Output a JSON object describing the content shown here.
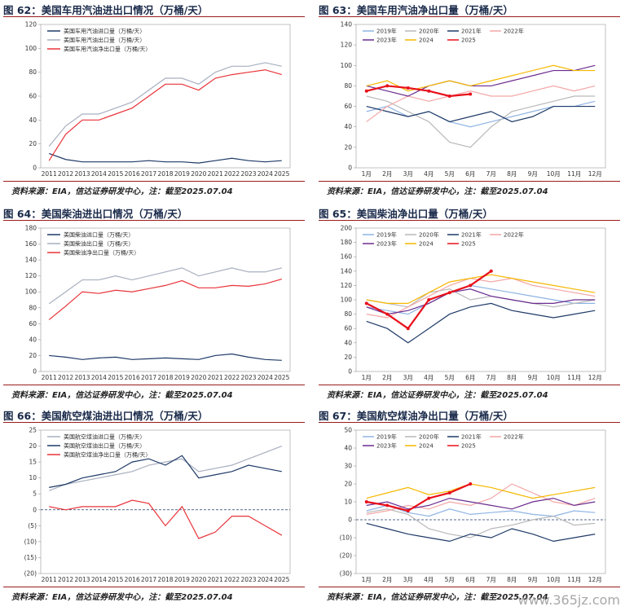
{
  "source_text": "资料来源：EIA，信达证券研发中心，注：截至2025.07.04",
  "watermark": "www.365jz.com",
  "colors": {
    "navy": "#1f3a68",
    "grey": "#a7afbf",
    "red": "#e8343a",
    "lightblue": "#8fb4e3",
    "darkblue": "#1f3a68",
    "pink": "#f4a6a6",
    "purple": "#6a2c8f",
    "gold": "#f5b800",
    "red25": "#e8101a",
    "greybeige": "#b9b9b9",
    "lavender": "#b9a3d6"
  },
  "charts": [
    {
      "title": "图 62：美国车用汽油进出口情况（万桶/天）",
      "chart_data": {
        "type": "line",
        "x": [
          "2011",
          "2012",
          "2013",
          "2014",
          "2015",
          "2016",
          "2017",
          "2018",
          "2019",
          "2020",
          "2021",
          "2022",
          "2023",
          "2024",
          "2025"
        ],
        "ylim": [
          0,
          120
        ],
        "yticks": [
          0,
          20,
          40,
          60,
          80,
          100,
          120
        ],
        "series": [
          {
            "name": "美国车用汽油进口量（万桶/天）",
            "color": "navy",
            "values": [
              12,
              7,
              5,
              5,
              5,
              5,
              6,
              5,
              5,
              4,
              6,
              8,
              6,
              5,
              6
            ]
          },
          {
            "name": "美国车用汽油出口量（万桶/天）",
            "color": "grey",
            "values": [
              18,
              35,
              45,
              45,
              50,
              55,
              65,
              75,
              75,
              70,
              80,
              85,
              85,
              88,
              85
            ]
          },
          {
            "name": "美国车用汽油净出口量（万桶/天）",
            "color": "red",
            "values": [
              6,
              28,
              40,
              40,
              45,
              50,
              60,
              70,
              70,
              65,
              75,
              78,
              80,
              82,
              78
            ]
          }
        ]
      }
    },
    {
      "title": "图 63：美国车用汽油净出口量（万桶/天）",
      "chart_data": {
        "type": "line",
        "x": [
          "1月",
          "2月",
          "3月",
          "4月",
          "5月",
          "6月",
          "7月",
          "8月",
          "9月",
          "10月",
          "11月",
          "12月"
        ],
        "ylim": [
          0,
          140
        ],
        "yticks": [
          0,
          20,
          40,
          60,
          80,
          100,
          120,
          140
        ],
        "series": [
          {
            "name": "2019年",
            "color": "lightblue",
            "values": [
              55,
              60,
              50,
              55,
              45,
              40,
              45,
              50,
              55,
              60,
              60,
              65
            ]
          },
          {
            "name": "2020年",
            "color": "greybeige",
            "values": [
              70,
              65,
              55,
              45,
              25,
              20,
              40,
              55,
              60,
              65,
              70,
              70
            ]
          },
          {
            "name": "2021年",
            "color": "darkblue",
            "values": [
              60,
              55,
              50,
              55,
              45,
              50,
              55,
              45,
              50,
              60,
              60,
              60
            ]
          },
          {
            "name": "2022年",
            "color": "pink",
            "values": [
              45,
              60,
              70,
              65,
              70,
              75,
              70,
              70,
              75,
              80,
              75,
              80
            ]
          },
          {
            "name": "2023年",
            "color": "purple",
            "values": [
              80,
              75,
              70,
              80,
              85,
              80,
              80,
              85,
              90,
              95,
              95,
              100
            ]
          },
          {
            "name": "2024",
            "color": "gold",
            "values": [
              80,
              85,
              75,
              80,
              85,
              80,
              85,
              90,
              95,
              100,
              95,
              95
            ]
          },
          {
            "name": "2025",
            "color": "red25",
            "values": [
              75,
              80,
              78,
              75,
              70,
              72,
              null,
              null,
              null,
              null,
              null,
              null
            ]
          }
        ]
      }
    },
    {
      "title": "图 64：美国柴油进出口情况（万桶/天）",
      "chart_data": {
        "type": "line",
        "x": [
          "2011",
          "2012",
          "2013",
          "2014",
          "2015",
          "2016",
          "2017",
          "2018",
          "2019",
          "2020",
          "2021",
          "2022",
          "2023",
          "2024",
          "2025"
        ],
        "ylim": [
          0,
          180
        ],
        "yticks": [
          0,
          20,
          40,
          60,
          80,
          100,
          120,
          140,
          160,
          180
        ],
        "series": [
          {
            "name": "美国柴油进口量（万桶/天）",
            "color": "navy",
            "values": [
              20,
              18,
              15,
              17,
              18,
              15,
              16,
              17,
              16,
              15,
              20,
              22,
              18,
              15,
              14
            ]
          },
          {
            "name": "美国柴油出口量（万桶/天）",
            "color": "grey",
            "values": [
              85,
              100,
              115,
              115,
              120,
              115,
              120,
              125,
              130,
              120,
              125,
              130,
              125,
              125,
              130
            ]
          },
          {
            "name": "美国柴油净出口量（万桶/天）",
            "color": "red",
            "values": [
              65,
              82,
              100,
              98,
              102,
              100,
              104,
              108,
              114,
              105,
              105,
              108,
              107,
              110,
              116
            ]
          }
        ]
      }
    },
    {
      "title": "图 65：美国柴油净出口量（万桶/天）",
      "chart_data": {
        "type": "line",
        "x": [
          "1月",
          "2月",
          "3月",
          "4月",
          "5月",
          "6月",
          "7月",
          "8月",
          "9月",
          "10月",
          "11月",
          "12月"
        ],
        "ylim": [
          0,
          200
        ],
        "yticks": [
          0,
          20,
          40,
          60,
          80,
          100,
          120,
          140,
          160,
          180,
          200
        ],
        "series": [
          {
            "name": "2019年",
            "color": "lightblue",
            "values": [
              90,
              85,
              80,
              95,
              110,
              120,
              115,
              110,
              105,
              100,
              95,
              95
            ]
          },
          {
            "name": "2020年",
            "color": "greybeige",
            "values": [
              100,
              95,
              90,
              110,
              115,
              100,
              105,
              100,
              95,
              90,
              95,
              100
            ]
          },
          {
            "name": "2021年",
            "color": "darkblue",
            "values": [
              70,
              60,
              40,
              60,
              80,
              90,
              95,
              85,
              80,
              75,
              80,
              85
            ]
          },
          {
            "name": "2022年",
            "color": "pink",
            "values": [
              80,
              75,
              90,
              105,
              120,
              130,
              125,
              130,
              120,
              115,
              110,
              105
            ]
          },
          {
            "name": "2023年",
            "color": "purple",
            "values": [
              90,
              80,
              85,
              95,
              110,
              115,
              105,
              100,
              95,
              95,
              100,
              100
            ]
          },
          {
            "name": "2024",
            "color": "gold",
            "values": [
              100,
              95,
              95,
              110,
              125,
              130,
              135,
              130,
              125,
              120,
              115,
              110
            ]
          },
          {
            "name": "2025",
            "color": "red25",
            "values": [
              95,
              80,
              60,
              100,
              110,
              120,
              140,
              null,
              null,
              null,
              null,
              null
            ]
          }
        ]
      }
    },
    {
      "title": "图 66：美国航空煤油进出口情况（万桶/天）",
      "chart_data": {
        "type": "line",
        "x": [
          "2011",
          "2012",
          "2013",
          "2014",
          "2015",
          "2016",
          "2017",
          "2018",
          "2019",
          "2020",
          "2021",
          "2022",
          "2023",
          "2024",
          "2025"
        ],
        "ylim": [
          -20,
          25
        ],
        "yticks": [
          -20,
          -15,
          -10,
          -5,
          0,
          5,
          10,
          15,
          20,
          25
        ],
        "ytick_labels": [
          "(20)",
          "(15)",
          "(10)",
          "(5)",
          "0",
          "5",
          "10",
          "15",
          "20",
          "25"
        ],
        "series": [
          {
            "name": "美国航空煤油进口量（万桶/天）",
            "color": "grey",
            "values": [
              6,
              8,
              9,
              10,
              11,
              12,
              14,
              15,
              16,
              12,
              13,
              14,
              16,
              18,
              20
            ]
          },
          {
            "name": "美国航空煤油出口量（万桶/天）",
            "color": "navy",
            "values": [
              7,
              8,
              10,
              11,
              12,
              15,
              16,
              14,
              17,
              10,
              11,
              12,
              14,
              13,
              12
            ]
          },
          {
            "name": "美国航空煤油净出口量（万桶/天）",
            "color": "red",
            "values": [
              1,
              0,
              1,
              1,
              1,
              3,
              2,
              -5,
              1,
              -9,
              -7,
              -2,
              -2,
              -5,
              -8
            ]
          }
        ]
      }
    },
    {
      "title": "图 67：美国航空煤油净出口量（万桶/天）",
      "chart_data": {
        "type": "line",
        "x": [
          "1月",
          "2月",
          "3月",
          "4月",
          "5月",
          "6月",
          "7月",
          "8月",
          "9月",
          "10月",
          "11月",
          "12月"
        ],
        "ylim": [
          -30,
          50
        ],
        "yticks": [
          -30,
          -20,
          -10,
          0,
          10,
          20,
          30,
          40,
          50
        ],
        "ytick_labels": [
          "(30)",
          "(20)",
          "(10)",
          "0",
          "10",
          "20",
          "30",
          "40",
          "50"
        ],
        "series": [
          {
            "name": "2019年",
            "color": "lightblue",
            "values": [
              5,
              8,
              4,
              2,
              6,
              3,
              4,
              5,
              3,
              2,
              5,
              4
            ]
          },
          {
            "name": "2020年",
            "color": "greybeige",
            "values": [
              4,
              6,
              3,
              -5,
              -8,
              -10,
              -5,
              -3,
              0,
              2,
              -3,
              -2
            ]
          },
          {
            "name": "2021年",
            "color": "darkblue",
            "values": [
              -2,
              -5,
              -8,
              -10,
              -12,
              -8,
              -10,
              -5,
              -8,
              -12,
              -10,
              -8
            ]
          },
          {
            "name": "2022年",
            "color": "pink",
            "values": [
              3,
              5,
              8,
              6,
              10,
              8,
              12,
              20,
              15,
              10,
              8,
              12
            ]
          },
          {
            "name": "2023年",
            "color": "purple",
            "values": [
              8,
              10,
              6,
              8,
              12,
              10,
              8,
              6,
              10,
              12,
              8,
              10
            ]
          },
          {
            "name": "2024",
            "color": "gold",
            "values": [
              12,
              15,
              18,
              14,
              16,
              20,
              18,
              15,
              12,
              14,
              16,
              18
            ]
          },
          {
            "name": "2025",
            "color": "red25",
            "values": [
              10,
              8,
              5,
              12,
              15,
              20,
              null,
              null,
              null,
              null,
              null,
              null
            ]
          }
        ]
      }
    }
  ]
}
